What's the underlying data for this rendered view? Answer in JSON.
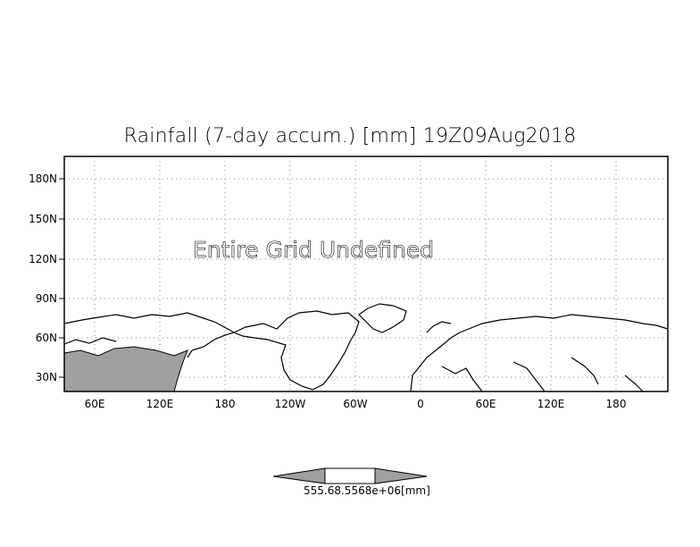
{
  "title": "Rainfall (7-day accum.) [mm] 19Z09Aug2018",
  "message": "Entire Grid Undefined",
  "lat_labels": [
    "180N",
    "150N",
    "120N",
    "90N",
    "60N",
    "30N"
  ],
  "lon_labels": [
    "60E",
    "120E",
    "180",
    "120W",
    "60W",
    "0",
    "60E",
    "120E",
    "180"
  ],
  "colorbar": {
    "label": "555.68.5568e+06[mm]",
    "left_color": "#a0a0a0",
    "middle_color": "#ffffff",
    "right_color": "#a0a0a0"
  },
  "colors": {
    "land_shade": "#a0a0a0",
    "grid": "#888888",
    "coast": "#000000"
  }
}
